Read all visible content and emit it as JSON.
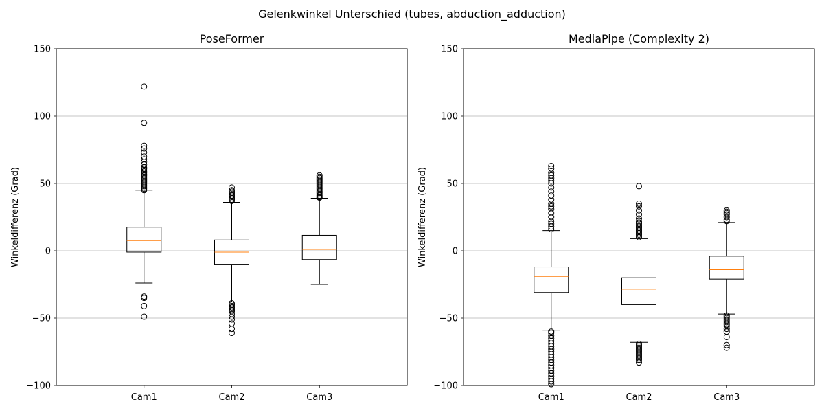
{
  "suptitle": "Gelenkwinkel Unterschied (tubes, abduction_adduction)",
  "chart_data": [
    {
      "type": "box",
      "title": "PoseFormer",
      "xlabel": "",
      "ylabel": "Winkeldifferenz (Grad)",
      "ylim": [
        -100,
        150
      ],
      "yticks": [
        -100,
        -50,
        0,
        50,
        100,
        150
      ],
      "ytick_labels": [
        "−100",
        "−50",
        "0",
        "50",
        "100",
        "150"
      ],
      "grid": "y",
      "categories": [
        "Cam1",
        "Cam2",
        "Cam3"
      ],
      "boxes": [
        {
          "name": "Cam1",
          "whisker_low": -24,
          "q1": -1,
          "median": 7.5,
          "q3": 17.5,
          "whisker_high": 45,
          "outliers": [
            -49,
            -41,
            -35,
            -34,
            45,
            46,
            47,
            48,
            49,
            50,
            51,
            52,
            53,
            54,
            55,
            56,
            57,
            58,
            59,
            60,
            61,
            62,
            64,
            66,
            68,
            70,
            73,
            76,
            78,
            95,
            122
          ]
        },
        {
          "name": "Cam2",
          "whisker_low": -38,
          "q1": -10,
          "median": -1,
          "q3": 8,
          "whisker_high": 36,
          "outliers": [
            -61,
            -58,
            -54,
            -51,
            -49,
            -47,
            -45,
            -44,
            -43,
            -42,
            -41,
            -40,
            -39,
            37,
            38,
            39,
            40,
            41,
            42,
            43,
            44,
            45,
            47
          ]
        },
        {
          "name": "Cam3",
          "whisker_low": -25,
          "q1": -6.5,
          "median": 1,
          "q3": 11.5,
          "whisker_high": 39,
          "outliers": [
            39.5,
            40,
            41,
            42,
            43,
            44,
            45,
            46,
            47,
            48,
            49,
            50,
            51,
            52,
            53,
            54,
            55,
            56
          ]
        }
      ]
    },
    {
      "type": "box",
      "title": "MediaPipe (Complexity 2)",
      "xlabel": "",
      "ylabel": "Winkeldifferenz (Grad)",
      "ylim": [
        -100,
        150
      ],
      "yticks": [
        -100,
        -50,
        0,
        50,
        100,
        150
      ],
      "ytick_labels": [
        "−100",
        "−50",
        "0",
        "50",
        "100",
        "150"
      ],
      "grid": "y",
      "categories": [
        "Cam1",
        "Cam2",
        "Cam3"
      ],
      "boxes": [
        {
          "name": "Cam1",
          "whisker_low": -59,
          "q1": -31,
          "median": -19,
          "q3": -12,
          "whisker_high": 15,
          "outliers": [
            -99,
            -97,
            -95,
            -93,
            -91,
            -89,
            -87,
            -85,
            -83,
            -81,
            -79,
            -77,
            -75,
            -73,
            -71,
            -69,
            -67,
            -65,
            -63,
            -61,
            -60,
            16,
            18,
            20,
            22,
            25,
            28,
            31,
            33,
            35,
            38,
            41,
            44,
            47,
            50,
            52,
            54,
            56,
            58,
            61,
            63
          ]
        },
        {
          "name": "Cam2",
          "whisker_low": -68,
          "q1": -40,
          "median": -28.5,
          "q3": -20,
          "whisker_high": 9,
          "outliers": [
            -83,
            -81,
            -80,
            -79,
            -78,
            -77,
            -76,
            -75,
            -74,
            -73,
            -72,
            -71,
            -70,
            -69,
            10,
            11,
            12,
            13,
            14,
            15,
            16,
            17,
            18,
            19,
            20,
            21,
            22,
            24,
            27,
            30,
            33,
            35,
            48
          ]
        },
        {
          "name": "Cam3",
          "whisker_low": -47,
          "q1": -21,
          "median": -14,
          "q3": -4,
          "whisker_high": 21,
          "outliers": [
            -72,
            -70,
            -64,
            -60,
            -58,
            -56,
            -55,
            -54,
            -53,
            -52,
            -51,
            -50,
            -49,
            -48,
            22,
            23,
            25,
            27,
            28,
            29,
            30
          ]
        }
      ]
    }
  ],
  "colors": {
    "median": "#ff7f0e",
    "box": "#000000",
    "grid": "#b0b0b0"
  }
}
